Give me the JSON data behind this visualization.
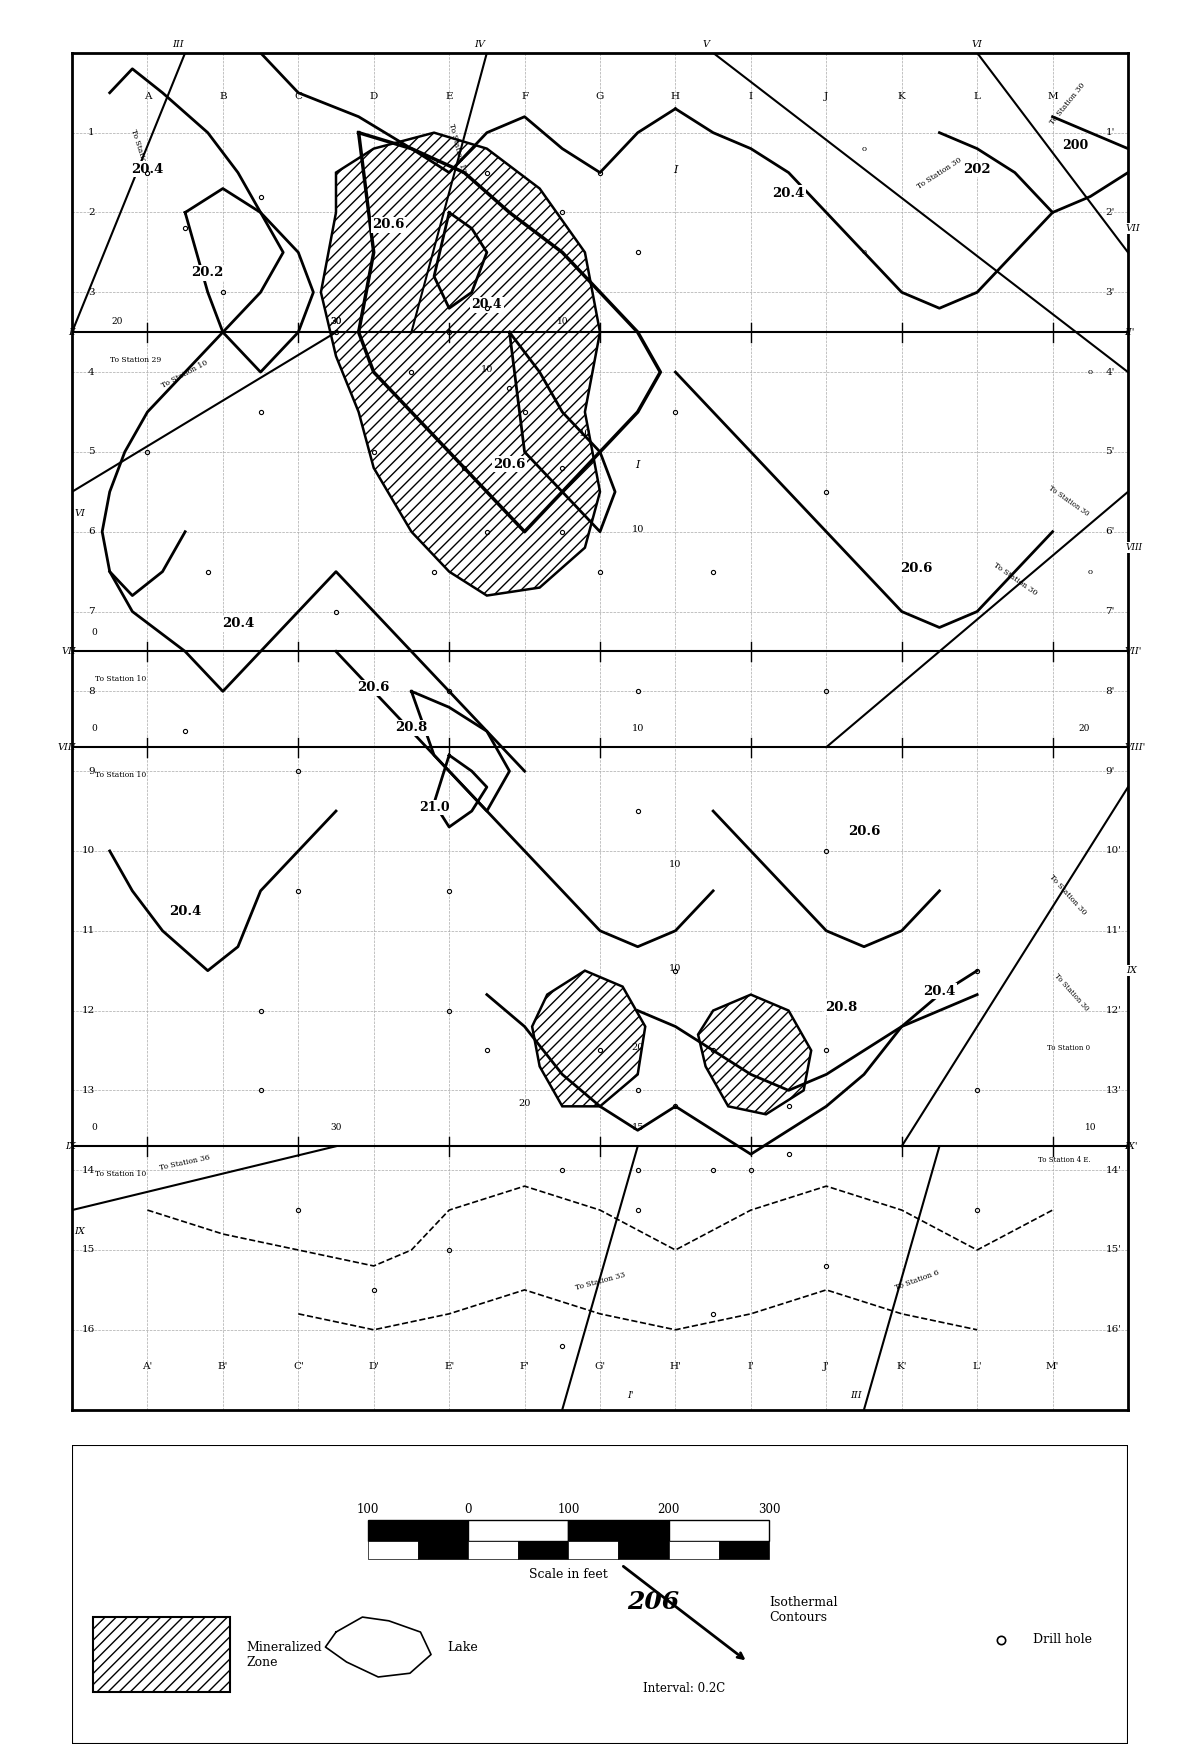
{
  "figure_size": [
    12.0,
    17.62
  ],
  "dpi": 100,
  "bg": "#ffffff",
  "col_labels": [
    "A",
    "B",
    "C",
    "D",
    "E",
    "F",
    "G",
    "H",
    "I",
    "J",
    "K",
    "L",
    "M"
  ],
  "row_labels": [
    "1",
    "2",
    "3",
    "4",
    "5",
    "6",
    "7",
    "8",
    "9",
    "10",
    "11",
    "12",
    "13",
    "14",
    "15",
    "16"
  ],
  "legend_mineral": "Mineralized\nZone",
  "legend_lake": "Lake",
  "legend_isothermal": "Isothermal\nContours",
  "legend_interval": "Interval: 0.2C",
  "legend_drill": "Drill hole",
  "scale_label": "Scale in feet",
  "scale_ticks": [
    "100",
    "0",
    "100",
    "200",
    "300"
  ]
}
